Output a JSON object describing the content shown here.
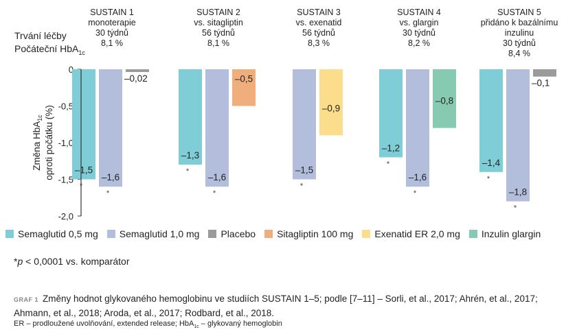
{
  "header": {
    "duration_label": "Trvání léčby",
    "baseline_label": "Počáteční HbA",
    "baseline_sub": "1c"
  },
  "studies": [
    {
      "lines": [
        "SUSTAIN 1",
        "monoterapie",
        "30 týdnů",
        "8,1 %"
      ]
    },
    {
      "lines": [
        "SUSTAIN 2",
        "vs. sitagliptin",
        "56 týdnů",
        "8,1 %"
      ]
    },
    {
      "lines": [
        "SUSTAIN 3",
        "vs. exenatid",
        "56 týdnů",
        "8,3 %"
      ]
    },
    {
      "lines": [
        "SUSTAIN 4",
        "vs. glargin",
        "30 týdnů",
        "8,2 %"
      ]
    },
    {
      "lines": [
        "SUSTAIN 5",
        "přidáno k bazálnímu",
        "inzulinu",
        "30 týdnů",
        "8,4 %"
      ]
    }
  ],
  "chart_data": {
    "type": "bar",
    "ylabel_line1": "Změna HbA",
    "ylabel_sub": "1c",
    "ylabel_line2": "oproti počátku (%)",
    "ylim": [
      -2.0,
      0
    ],
    "yticks": [
      "0",
      "-0,5",
      "-1,0",
      "-1,5",
      "-2,0"
    ],
    "series_colors": {
      "Semaglutid 0,5 mg": "#7fcdd6",
      "Semaglutid 1,0 mg": "#b2bedc",
      "Placebo": "#9b9b9b",
      "Sitagliptin 100 mg": "#efae7c",
      "Exenatid ER 2,0 mg": "#fbdd8c",
      "Inzulin glargin": "#86cbb1"
    },
    "groups": [
      {
        "study": "SUSTAIN 1",
        "bars": [
          {
            "series": "Semaglutid 0,5 mg",
            "value": -1.5,
            "label": "–1,5",
            "star": true
          },
          {
            "series": "Semaglutid 1,0 mg",
            "value": -1.6,
            "label": "–1,6",
            "star": true
          },
          {
            "series": "Placebo",
            "value": -0.02,
            "label": "–0,02",
            "star": false
          }
        ]
      },
      {
        "study": "SUSTAIN 2",
        "bars": [
          {
            "series": "Semaglutid 0,5 mg",
            "value": -1.3,
            "label": "–1,3",
            "star": true
          },
          {
            "series": "Semaglutid 1,0 mg",
            "value": -1.6,
            "label": "–1,6",
            "star": true
          },
          {
            "series": "Sitagliptin 100 mg",
            "value": -0.5,
            "label": "–0,5",
            "star": false
          }
        ]
      },
      {
        "study": "SUSTAIN 3",
        "bars": [
          {
            "series": "Semaglutid 1,0 mg",
            "value": -1.5,
            "label": "–1,5",
            "star": true
          },
          {
            "series": "Exenatid ER 2,0 mg",
            "value": -0.9,
            "label": "–0,9",
            "star": false
          }
        ]
      },
      {
        "study": "SUSTAIN 4",
        "bars": [
          {
            "series": "Semaglutid 0,5 mg",
            "value": -1.2,
            "label": "–1,2",
            "star": true
          },
          {
            "series": "Semaglutid 1,0 mg",
            "value": -1.6,
            "label": "–1,6",
            "star": true
          },
          {
            "series": "Inzulin glargin",
            "value": -0.8,
            "label": "–0,8",
            "star": false
          }
        ]
      },
      {
        "study": "SUSTAIN 5",
        "bars": [
          {
            "series": "Semaglutid 0,5 mg",
            "value": -1.4,
            "label": "–1,4",
            "star": true
          },
          {
            "series": "Semaglutid 1,0 mg",
            "value": -1.8,
            "label": "–1,8",
            "star": true
          },
          {
            "series": "Placebo",
            "value": -0.1,
            "label": "–0,1",
            "star": false
          }
        ]
      }
    ],
    "star_symbol": "*",
    "legend": [
      "Semaglutid 0,5 mg",
      "Semaglutid 1,0 mg",
      "Placebo",
      "Sitagliptin 100 mg",
      "Exenatid ER 2,0 mg",
      "Inzulin glargin"
    ]
  },
  "footnote": {
    "star": "*",
    "p": "p",
    "text": " < 0,0001 vs. komparátor"
  },
  "caption": {
    "tag": "GRAF 1",
    "text": "Změny hodnot glykovaného hemoglobinu ve studiích SUSTAIN 1–5; podle [7–11] – Sorli, et al., 2017; Ahrén, et al., 2017; Ahmann, et al., 2018; Aroda, et al., 2017; Rodbard, et al., 2018."
  },
  "abbrev": {
    "er": "ER – prodloužené uvolňování, extended release; HbA",
    "sub": "1c",
    "rest": " – glykovaný hemoglobin"
  }
}
